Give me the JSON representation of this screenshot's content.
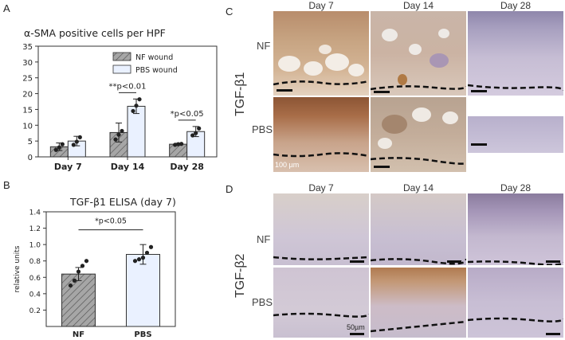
{
  "panel_labels": {
    "a": "A",
    "b": "B",
    "c": "C",
    "d": "D"
  },
  "chart_data": [
    {
      "type": "bar",
      "title": "α-SMA positive cells per HPF",
      "categories": [
        "Day 7",
        "Day 14",
        "Day 28"
      ],
      "ylim": [
        0,
        35
      ],
      "yticks": [
        0,
        5,
        10,
        15,
        20,
        25,
        30,
        35
      ],
      "grid": false,
      "legend_position": "top-right",
      "series": [
        {
          "name": "NF wound",
          "values": [
            3.2,
            7.7,
            4.0
          ],
          "errors": [
            1.2,
            3.0,
            0.3
          ],
          "points": [
            [
              2.2,
              3.0,
              4.0
            ],
            [
              5.5,
              7.0,
              8.2
            ],
            [
              3.8,
              4.0,
              4.1
            ]
          ],
          "color": "#a6a6a6",
          "hatch": true
        },
        {
          "name": "PBS wound",
          "values": [
            5.0,
            16.0,
            8.0
          ],
          "errors": [
            1.5,
            2.3,
            1.6
          ],
          "points": [
            [
              3.8,
              4.8,
              6.2
            ],
            [
              14.5,
              16.2,
              18.2
            ],
            [
              6.8,
              7.5,
              9.0
            ]
          ],
          "color": "#eaf1ff",
          "hatch": false
        }
      ],
      "annotations": [
        {
          "text": "**p<0.01",
          "category": "Day 14"
        },
        {
          "text": "*p<0.05",
          "category": "Day 28"
        }
      ]
    },
    {
      "type": "bar",
      "title": "TGF-β1 ELISA (day 7)",
      "categories": [
        "NF",
        "PBS"
      ],
      "values": [
        0.64,
        0.88
      ],
      "errors": [
        0.08,
        0.12
      ],
      "points": [
        [
          0.5,
          0.56,
          0.67,
          0.74,
          0.8
        ],
        [
          0.8,
          0.82,
          0.84,
          0.9,
          0.97
        ]
      ],
      "colors": [
        "#a6a6a6",
        "#eaf1ff"
      ],
      "hatch": [
        true,
        false
      ],
      "ylabel": "relative units",
      "ylim": [
        0,
        1.4
      ],
      "yticks": [
        0.2,
        0.4,
        0.6,
        0.8,
        1.0,
        1.2,
        1.4
      ],
      "annotation": "*p<0.05"
    }
  ],
  "micrographs": {
    "columns": [
      "Day 7",
      "Day 14",
      "Day 28"
    ],
    "rows": [
      "NF",
      "PBS"
    ],
    "c_marker": "TGF-β1",
    "d_marker": "TGF-β2",
    "c_scale": "100 µm",
    "d_scale": "50µm"
  }
}
